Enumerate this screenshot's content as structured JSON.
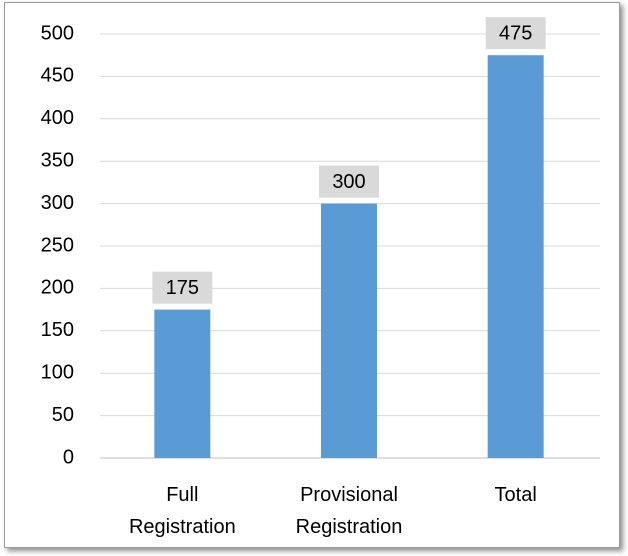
{
  "chart_data": {
    "type": "bar",
    "categories": [
      "Full Registration",
      "Provisional Registration",
      "Total"
    ],
    "values": [
      175,
      300,
      475
    ],
    "color": "#5b9bd5",
    "label_box_color": "#d9d9d9",
    "ylim": [
      0,
      500
    ],
    "yticks": [
      0,
      50,
      100,
      150,
      200,
      250,
      300,
      350,
      400,
      450,
      500
    ],
    "grid": true
  }
}
